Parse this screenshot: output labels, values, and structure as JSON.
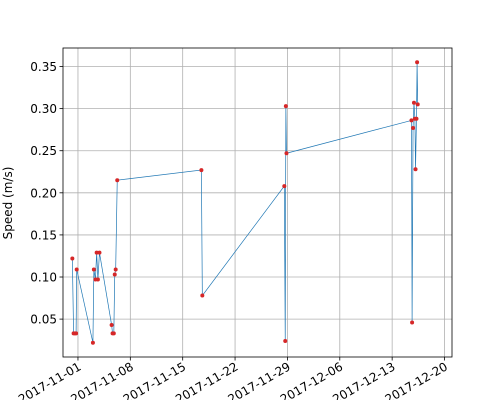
{
  "chart_data": {
    "type": "line",
    "title": "",
    "xlabel": "",
    "ylabel": "Speed (m/s)",
    "x_is_date": true,
    "xlim": [
      "2017-10-30",
      "2017-12-21"
    ],
    "ylim": [
      0.005,
      0.372
    ],
    "x_ticks": [
      "2017-11-01",
      "2017-11-08",
      "2017-11-15",
      "2017-11-22",
      "2017-11-29",
      "2017-12-06",
      "2017-12-13",
      "2017-12-20"
    ],
    "x_tick_labels": [
      "2017-11-01",
      "2017-11-08",
      "2017-11-15",
      "2017-11-22",
      "2017-11-29",
      "2017-12-06",
      "2017-12-13",
      "2017-12-20"
    ],
    "y_ticks": [
      0.05,
      0.1,
      0.15,
      0.2,
      0.25,
      0.3,
      0.35
    ],
    "y_tick_labels": [
      "0.05",
      "0.10",
      "0.15",
      "0.20",
      "0.25",
      "0.30",
      "0.35"
    ],
    "grid": true,
    "line_color": "#1f77b4",
    "marker_color": "#d62728",
    "series": [
      {
        "x": [
          "2017-10-31T06:00",
          "2017-10-31T10:00",
          "2017-10-31T14:00",
          "2017-10-31T18:00",
          "2017-10-31T20:00",
          "2017-11-03T00:00",
          "2017-11-03T03:00",
          "2017-11-03T08:00",
          "2017-11-03T12:00",
          "2017-11-03T16:00",
          "2017-11-03T21:00",
          "2017-11-05T12:00",
          "2017-11-05T15:00",
          "2017-11-05T19:00",
          "2017-11-05T22:00",
          "2017-11-06T01:00",
          "2017-11-06T06:00",
          "2017-11-17T12:00",
          "2017-11-17T15:00",
          "2017-11-28T14:00",
          "2017-11-28T17:00",
          "2017-11-28T19:00",
          "2017-11-28T21:00",
          "2017-12-15T14:00",
          "2017-12-15T16:00",
          "2017-12-15T19:00",
          "2017-12-15T22:00",
          "2017-12-16T01:00",
          "2017-12-16T03:00",
          "2017-12-16T06:00",
          "2017-12-16T08:00",
          "2017-12-16T10:00"
        ],
        "y": [
          0.122,
          0.033,
          0.033,
          0.033,
          0.109,
          0.022,
          0.109,
          0.097,
          0.129,
          0.097,
          0.129,
          0.043,
          0.033,
          0.033,
          0.103,
          0.109,
          0.215,
          0.227,
          0.078,
          0.208,
          0.024,
          0.303,
          0.247,
          0.286,
          0.046,
          0.277,
          0.307,
          0.288,
          0.228,
          0.288,
          0.355,
          0.305
        ]
      }
    ]
  }
}
